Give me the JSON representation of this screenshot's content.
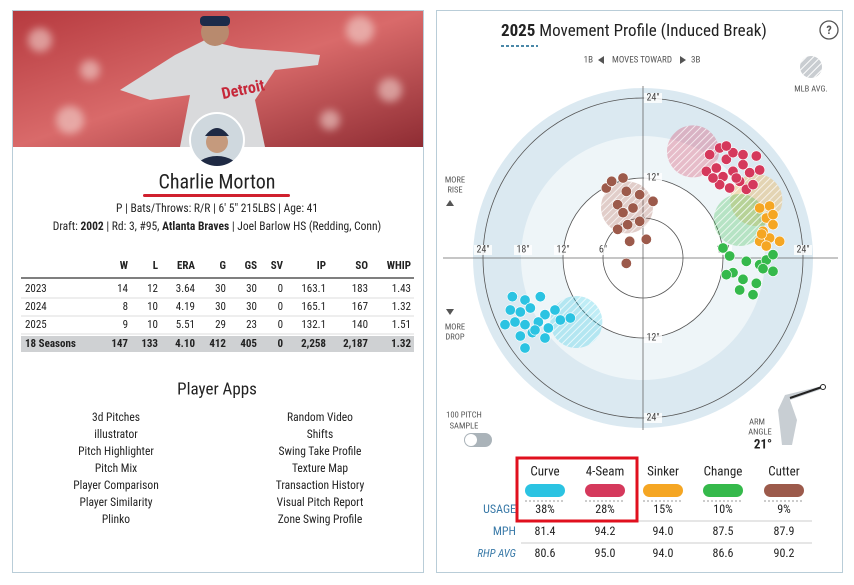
{
  "player": {
    "name": "Charlie Morton",
    "bio": "P | Bats/Throws: R/R | 6' 5\" 215LBS | Age: 41",
    "draft": [
      "Draft:",
      "2002",
      "| Rd: 3, #95,",
      "Atlanta Braves",
      "| Joel Barlow HS (Redding, Conn)"
    ]
  },
  "stats": {
    "headers": [
      "W",
      "L",
      "ERA",
      "G",
      "GS",
      "SV",
      "IP",
      "SO",
      "WHIP"
    ],
    "rows": [
      [
        "2023",
        "14",
        "12",
        "3.64",
        "30",
        "30",
        "0",
        "163.1",
        "183",
        "1.43"
      ],
      [
        "2024",
        "8",
        "10",
        "4.19",
        "30",
        "30",
        "0",
        "165.1",
        "167",
        "1.32"
      ],
      [
        "2025",
        "9",
        "10",
        "5.51",
        "29",
        "23",
        "0",
        "132.1",
        "140",
        "1.51"
      ],
      [
        "18 Seasons",
        "147",
        "133",
        "4.10",
        "412",
        "405",
        "0",
        "2,258",
        "2,187",
        "1.32"
      ]
    ]
  },
  "apps": {
    "title": "Player Apps",
    "left": [
      "3d Pitches",
      "illustrator",
      "Pitch Highlighter",
      "Pitch Mix",
      "Player Comparison",
      "Player Similarity",
      "Plinko"
    ],
    "right": [
      "Random Video",
      "Shifts",
      "Swing Take Profile",
      "Texture Map",
      "Transaction History",
      "Visual Pitch Report",
      "Zone Swing Profile"
    ]
  },
  "chart_data": {
    "type": "scatter",
    "title_year": "2025",
    "title": "Movement Profile (Induced Break)",
    "help": "?",
    "direction": [
      "1B",
      "MOVES TOWARD",
      "3B"
    ],
    "mlb_avg_label": "MLB AVG.",
    "rise_label": [
      "MORE",
      "RISE"
    ],
    "drop_label": [
      "MORE",
      "DROP"
    ],
    "sample_label": [
      "100 PITCH",
      "SAMPLE"
    ],
    "arm_angle_label": [
      "ARM",
      "ANGLE"
    ],
    "arm_angle": "21°",
    "xlim": [
      -25.5,
      25.5
    ],
    "ylim": [
      -25.5,
      25.5
    ],
    "xticks": [
      {
        "value": -24,
        "label": "24\""
      },
      {
        "value": -18,
        "label": "18\""
      },
      {
        "value": -12,
        "label": "12\""
      },
      {
        "value": -6,
        "label": "6\""
      },
      {
        "value": 12,
        "label": "12\""
      },
      {
        "value": 24,
        "label": "24\""
      }
    ],
    "yticks": [
      {
        "value": 24,
        "label": "24\""
      },
      {
        "value": 12,
        "label": "12\""
      },
      {
        "value": -12,
        "label": "12\""
      },
      {
        "value": -24,
        "label": "24\""
      }
    ],
    "row_labels": [
      "USAGE",
      "MPH",
      "RHP AVG"
    ],
    "series": [
      {
        "name": "Curve",
        "color": "#2bc3e2",
        "usage": "38%",
        "mph": "81.4",
        "rhp_avg": "80.6",
        "mlb_avg": [
          -10,
          -9.6
        ],
        "x": [
          -19.6,
          -17.7,
          -15.4,
          -19.9,
          -18.4,
          -16.9,
          -14.7,
          -13.2,
          -19.2,
          -17.7,
          -15.7,
          -14.2,
          -12.4,
          -18.4,
          -16.6,
          -14.7,
          -17.7,
          -10.9,
          -20.7,
          -16.2
        ],
        "y": [
          -5.8,
          -6.3,
          -5.8,
          -7.8,
          -8.1,
          -7.5,
          -8.5,
          -7.8,
          -9.6,
          -10.0,
          -9.6,
          -10.5,
          -9.3,
          -11.7,
          -11.2,
          -12.0,
          -13.5,
          -9.0,
          -10.0,
          -10.8
        ]
      },
      {
        "name": "4-Seam",
        "color": "#d5395c",
        "usage": "28%",
        "mph": "94.2",
        "rhp_avg": "95.0",
        "mlb_avg": [
          7.5,
          16
        ],
        "x": [
          10,
          11.5,
          12.5,
          13.5,
          11,
          12,
          13.5,
          15,
          14.5,
          16,
          17,
          11.5,
          13,
          15.5,
          16.5,
          9.5,
          12.5,
          14,
          10.5,
          17.5,
          15
        ],
        "y": [
          15.5,
          16.5,
          14.8,
          15.8,
          13.5,
          12.2,
          13,
          14,
          11.5,
          12.8,
          15.3,
          11,
          10.5,
          10.3,
          11,
          13,
          16.8,
          12,
          12,
          13.2,
          15.5
        ]
      },
      {
        "name": "Sinker",
        "color": "#f5a623",
        "usage": "15%",
        "mph": "94.0",
        "rhp_avg": "94.0",
        "mlb_avg": [
          17,
          8.7
        ],
        "x": [
          17.5,
          19,
          18.5,
          19.5,
          18,
          19,
          17.5,
          18.5,
          20.5,
          17.8,
          19.5
        ],
        "y": [
          7.5,
          7.8,
          6,
          5,
          4,
          3,
          2.5,
          1.8,
          2.5,
          3.6,
          6.5
        ]
      },
      {
        "name": "Change",
        "color": "#35b94b",
        "usage": "10%",
        "mph": "87.5",
        "rhp_avg": "86.6",
        "mlb_avg": [
          14.5,
          5.7
        ],
        "x": [
          12,
          13,
          15.5,
          17.5,
          18.5,
          19.5,
          13.5,
          15,
          17,
          14.5,
          16.5,
          19.5,
          18,
          12.5
        ],
        "y": [
          1.5,
          0.3,
          -0.5,
          -1,
          -0.3,
          -2,
          -2.2,
          -3.2,
          -3.8,
          -4.8,
          -5.5,
          0.5,
          -1.6,
          -2.5
        ]
      },
      {
        "name": "Cutter",
        "color": "#9c5a4b",
        "usage": "9%",
        "mph": "87.9",
        "rhp_avg": "90.2",
        "mlb_avg": [
          -2.4,
          7.6
        ],
        "x": [
          -5.5,
          -4.7,
          -3,
          -2.5,
          -0.5,
          -3.8,
          -1.5,
          -3,
          1.5,
          -0.5,
          -2.3,
          -3.8,
          -2,
          0.5,
          -2.5
        ],
        "y": [
          10.5,
          11.5,
          12,
          10,
          9.5,
          8,
          7.5,
          6.8,
          8.5,
          5.5,
          5,
          4.3,
          2.5,
          2.8,
          -0.8
        ]
      }
    ]
  }
}
